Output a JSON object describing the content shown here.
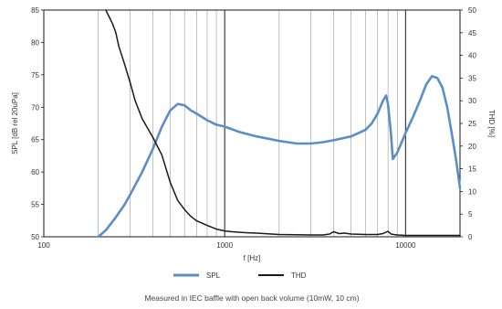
{
  "chart_data": {
    "type": "line",
    "xlabel": "f [Hz]",
    "ylabel_left": "SPL [dB rel 20uPa]",
    "ylabel_right": "THD [%]",
    "x_scale": "log",
    "xlim": [
      100,
      20000
    ],
    "x_ticks": [
      100,
      1000,
      10000
    ],
    "x_tick_labels": [
      "100",
      "1000",
      "10000"
    ],
    "ylim_left": [
      50,
      85
    ],
    "y_ticks_left": [
      50,
      55,
      60,
      65,
      70,
      75,
      80,
      85
    ],
    "ylim_right": [
      0,
      50
    ],
    "y_ticks_right": [
      0,
      5,
      10,
      15,
      20,
      25,
      30,
      35,
      40,
      45,
      50
    ],
    "grid": "vertical",
    "legend_position": "bottom",
    "caption": "Measured in IEC baffle with open back volume (10mW, 10 cm)",
    "series": [
      {
        "name": "SPL",
        "axis": "left",
        "color": "#5b8ec6",
        "x": [
          200,
          220,
          250,
          280,
          300,
          350,
          400,
          450,
          500,
          550,
          600,
          650,
          700,
          800,
          900,
          1000,
          1200,
          1500,
          2000,
          2500,
          3000,
          3500,
          4000,
          5000,
          6000,
          6500,
          7000,
          7500,
          7800,
          8000,
          8300,
          8500,
          9000,
          10000,
          11000,
          12000,
          13000,
          14000,
          15000,
          16000,
          17000,
          18000,
          19000,
          20000
        ],
        "y": [
          50,
          51,
          53,
          55,
          56.5,
          60,
          63.5,
          67,
          69.5,
          70.5,
          70.3,
          69.5,
          69,
          68,
          67.3,
          67,
          66.2,
          65.5,
          64.8,
          64.4,
          64.4,
          64.6,
          64.9,
          65.5,
          66.5,
          67.5,
          69,
          71,
          71.8,
          70.5,
          66,
          62,
          63,
          66,
          68.5,
          71,
          73.5,
          74.8,
          74.5,
          73,
          70,
          66,
          62,
          57.5
        ]
      },
      {
        "name": "THD",
        "axis": "right",
        "color": "#1a1a1a",
        "x": [
          220,
          240,
          250,
          260,
          280,
          300,
          320,
          350,
          400,
          450,
          500,
          550,
          600,
          650,
          700,
          800,
          900,
          1000,
          1100,
          1300,
          1500,
          2000,
          3000,
          3500,
          3800,
          4000,
          4300,
          4600,
          5000,
          6000,
          7000,
          7500,
          8000,
          8300,
          8600,
          9000,
          10000,
          12000,
          15000,
          20000
        ],
        "y": [
          50,
          47,
          45,
          42,
          38,
          34,
          30,
          26,
          22,
          18,
          12,
          8,
          6,
          4.5,
          3.5,
          2.5,
          1.7,
          1.3,
          1.1,
          0.9,
          0.8,
          0.5,
          0.4,
          0.4,
          0.6,
          1.1,
          0.7,
          0.8,
          0.6,
          0.5,
          0.5,
          0.7,
          1.2,
          0.6,
          0.5,
          0.4,
          0.3,
          0.3,
          0.3,
          0.3
        ]
      }
    ]
  }
}
